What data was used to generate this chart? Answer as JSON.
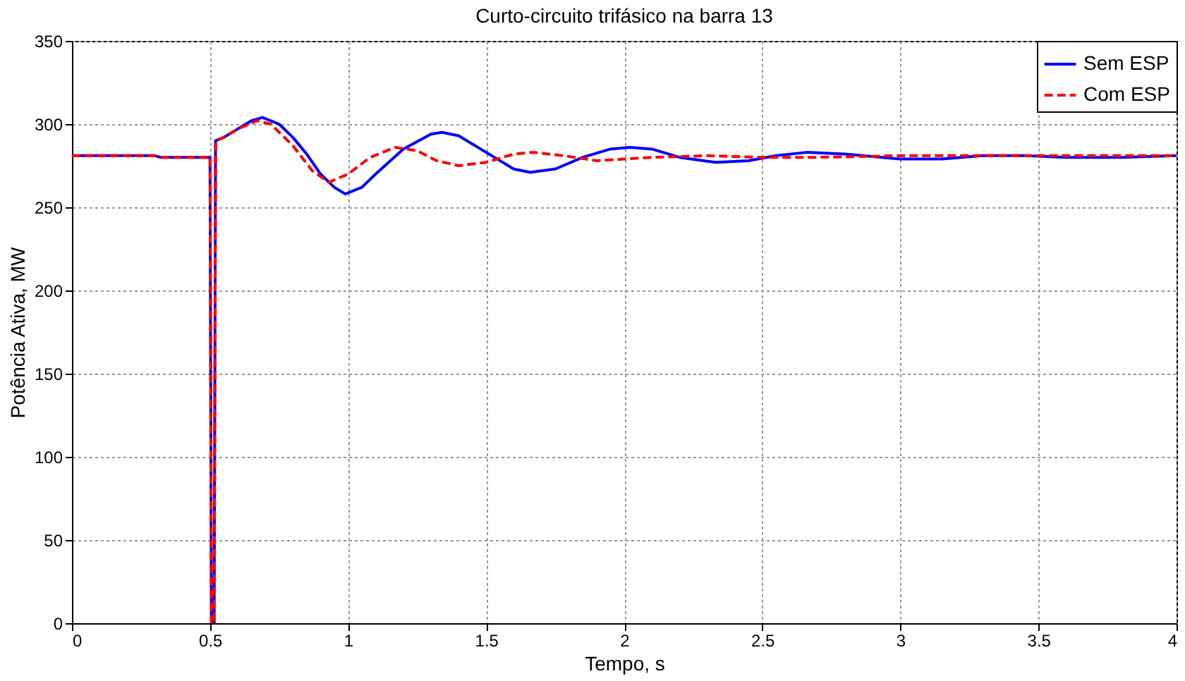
{
  "chart_data": {
    "type": "line",
    "title": "Curto-circuito trifásico na barra 13",
    "xlabel": "Tempo, s",
    "ylabel": "Potência Ativa, MW",
    "xlim": [
      0,
      4
    ],
    "ylim": [
      0,
      350
    ],
    "xticks": [
      0,
      0.5,
      1,
      1.5,
      2,
      2.5,
      3,
      3.5,
      4
    ],
    "yticks": [
      0,
      50,
      100,
      150,
      200,
      250,
      300,
      350
    ],
    "grid": true,
    "legend": "top right",
    "series": [
      {
        "name": "Sem ESP",
        "color": "#0000ff",
        "line_style": "solid",
        "x": [
          0,
          0.3,
          0.32,
          0.5,
          0.505,
          0.515,
          0.52,
          0.55,
          0.6,
          0.65,
          0.69,
          0.75,
          0.8,
          0.85,
          0.9,
          0.95,
          0.99,
          1.05,
          1.1,
          1.2,
          1.3,
          1.34,
          1.4,
          1.5,
          1.6,
          1.66,
          1.75,
          1.85,
          1.95,
          2.02,
          2.1,
          2.2,
          2.33,
          2.45,
          2.55,
          2.66,
          2.8,
          3.0,
          3.15,
          3.3,
          3.45,
          3.6,
          3.8,
          4.0
        ],
        "values": [
          281,
          281,
          280,
          280,
          0,
          0,
          290,
          292,
          297,
          302,
          304,
          300,
          292,
          282,
          270,
          262,
          258,
          262,
          270,
          285,
          294,
          295,
          293,
          283,
          273,
          271,
          273,
          280,
          285,
          286,
          285,
          280,
          277,
          278,
          281,
          283,
          282,
          279,
          279,
          281,
          281,
          280,
          280,
          281
        ]
      },
      {
        "name": "Com ESP",
        "color": "#ff0000",
        "line_style": "dashed",
        "x": [
          0,
          0.3,
          0.32,
          0.5,
          0.505,
          0.515,
          0.52,
          0.55,
          0.6,
          0.67,
          0.72,
          0.8,
          0.87,
          0.93,
          1.0,
          1.08,
          1.17,
          1.25,
          1.32,
          1.4,
          1.5,
          1.6,
          1.67,
          1.78,
          1.9,
          2.0,
          2.1,
          2.3,
          2.5,
          2.7,
          3.0,
          3.5,
          4.0
        ],
        "values": [
          281,
          281,
          280,
          280,
          0,
          0,
          290,
          292,
          297,
          302,
          300,
          287,
          272,
          265,
          270,
          280,
          286,
          284,
          278,
          275,
          277,
          282,
          283,
          281,
          278,
          279,
          280,
          281,
          280,
          280,
          281,
          281,
          281
        ]
      }
    ]
  }
}
